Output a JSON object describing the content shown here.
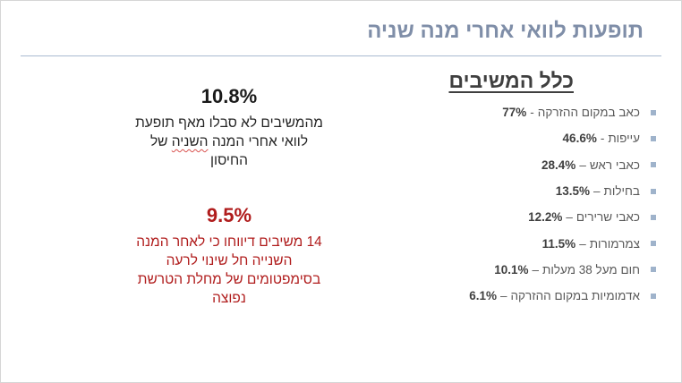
{
  "slide": {
    "title": "תופעות לוואי אחרי מנה שניה",
    "section_heading": "כלל המשיבים"
  },
  "effects": [
    {
      "label": "כאב במקום ההזרקה",
      "sep": "-",
      "value": "77%"
    },
    {
      "label": "עייפות",
      "sep": "-",
      "value": "46.6%"
    },
    {
      "label": "כאבי ראש",
      "sep": "–",
      "value": "28.4%"
    },
    {
      "label": "בחילות",
      "sep": "–",
      "value": "13.5%"
    },
    {
      "label": "כאבי שרירים",
      "sep": "–",
      "value": "12.2%"
    },
    {
      "label": "צמרמורות",
      "sep": "–",
      "value": "11.5%"
    },
    {
      "label": "חום מעל 38 מעלות",
      "sep": "–",
      "value": "10.1%"
    },
    {
      "label": "אדמומיות במקום ההזרקה",
      "sep": "–",
      "value": "6.1%"
    }
  ],
  "stat_no_effects": {
    "value": "10.8%",
    "line1": "מהמשיבים לא סבלו מאף תופעת",
    "line2_before": "לוואי אחרי המנה ",
    "line2_squiggle": "השניה",
    "line2_after": " של",
    "line3": "החיסון"
  },
  "stat_migraine": {
    "value": "9.5%",
    "line1": "14 משיבים דיווחו כי לאחר המנה",
    "line2": "השנייה חל שינוי לרעה",
    "line3": "בסימפטומים של מחלת הטרשת",
    "line4": "נפוצה"
  },
  "colors": {
    "title": "#7f8ea8",
    "rule": "#a9bad1",
    "bullet": "#9fb3cb",
    "highlight_red": "#b01c1c"
  }
}
